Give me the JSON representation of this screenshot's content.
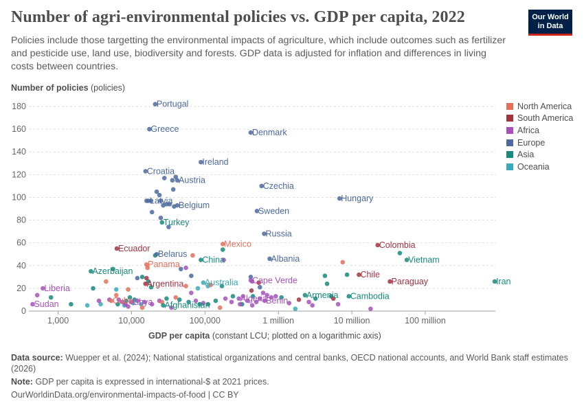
{
  "header": {
    "title": "Number of agri-environmental policies vs. GDP per capita, 2022",
    "subtitle": "Policies include those targetting the environmental impacts of agriculture, which include outcomes such as fertilizer and pesticide use, land use, biodiversity and forests. GDP data is adjusted for inflation and differences in living costs between countries.",
    "logo_line1": "Our World",
    "logo_line2": "in Data"
  },
  "footer": {
    "source_label": "Data source:",
    "source_text": "Wuepper et al. (2024); National statistical organizations and central banks, OECD national accounts, and World Bank staff estimates (2026)",
    "note_label": "Note:",
    "note_text": "GDP per capita is expressed in international-$ at 2021 prices.",
    "credit": "OurWorldinData.org/environmental-impacts-of-food | CC BY"
  },
  "colors": {
    "North America": "#e56e5a",
    "South America": "#a2333f",
    "Africa": "#a652ba",
    "Europe": "#4c6a9c",
    "Asia": "#18897c",
    "Oceania": "#3aaab8"
  },
  "chart_data": {
    "type": "scatter",
    "title": "Number of agri-environmental policies vs. GDP per capita, 2022",
    "ylabel_bold": "Number of policies",
    "ylabel_unit": "(policies)",
    "xlabel_bold": "GDP per capita",
    "xlabel_unit": "(constant LCU; plotted on a logarithmic axis)",
    "x_scale": "log",
    "xlim": [
      400,
      900000000
    ],
    "ylim": [
      0,
      180
    ],
    "x_ticks": [
      {
        "v": 1000,
        "label": "1,000"
      },
      {
        "v": 10000,
        "label": "10,000"
      },
      {
        "v": 100000,
        "label": "100,000"
      },
      {
        "v": 1000000,
        "label": "1 million"
      },
      {
        "v": 10000000,
        "label": "10 million"
      },
      {
        "v": 100000000,
        "label": "100 million"
      }
    ],
    "y_ticks": [
      0,
      20,
      40,
      60,
      80,
      100,
      120,
      140,
      160,
      180
    ],
    "grid": "horizontal",
    "legend_position": "right",
    "legend": [
      "North America",
      "South America",
      "Africa",
      "Europe",
      "Asia",
      "Oceania"
    ],
    "labeled_points": [
      {
        "name": "Portugal",
        "region": "Europe",
        "x": 21000,
        "y": 182
      },
      {
        "name": "Greece",
        "region": "Europe",
        "x": 17500,
        "y": 160
      },
      {
        "name": "Denmark",
        "region": "Europe",
        "x": 420000,
        "y": 157
      },
      {
        "name": "Ireland",
        "region": "Europe",
        "x": 88000,
        "y": 131
      },
      {
        "name": "Croatia",
        "region": "Europe",
        "x": 15500,
        "y": 123
      },
      {
        "name": "Austria",
        "region": "Europe",
        "x": 42000,
        "y": 115
      },
      {
        "name": "Czechia",
        "region": "Europe",
        "x": 590000,
        "y": 110
      },
      {
        "name": "Hungary",
        "region": "Europe",
        "x": 6800000,
        "y": 99
      },
      {
        "name": "Latvia",
        "region": "Europe",
        "x": 17000,
        "y": 97
      },
      {
        "name": "Belgium",
        "region": "Europe",
        "x": 42000,
        "y": 93
      },
      {
        "name": "Sweden",
        "region": "Europe",
        "x": 510000,
        "y": 88
      },
      {
        "name": "Turkey",
        "region": "Asia",
        "x": 26000,
        "y": 78
      },
      {
        "name": "Russia",
        "region": "Europe",
        "x": 640000,
        "y": 68
      },
      {
        "name": "Ecuador",
        "region": "South America",
        "x": 6300,
        "y": 55
      },
      {
        "name": "Mexico",
        "region": "North America",
        "x": 175000,
        "y": 59
      },
      {
        "name": "Colombia",
        "region": "South America",
        "x": 22500000,
        "y": 58
      },
      {
        "name": "Belarus",
        "region": "Europe",
        "x": 22000,
        "y": 50
      },
      {
        "name": "China",
        "region": "Asia",
        "x": 88000,
        "y": 45
      },
      {
        "name": "Albania",
        "region": "Europe",
        "x": 760000,
        "y": 46
      },
      {
        "name": "Vietnam",
        "region": "Asia",
        "x": 56000000,
        "y": 45
      },
      {
        "name": "Panama",
        "region": "North America",
        "x": 16000,
        "y": 41
      },
      {
        "name": "Azerbaijan",
        "region": "Asia",
        "x": 2800,
        "y": 35
      },
      {
        "name": "Chile",
        "region": "South America",
        "x": 12500000,
        "y": 32
      },
      {
        "name": "Paraguay",
        "region": "South America",
        "x": 33000000,
        "y": 26
      },
      {
        "name": "Iran",
        "region": "Asia",
        "x": 880000000,
        "y": 26
      },
      {
        "name": "Argentina",
        "region": "South America",
        "x": 15500,
        "y": 24
      },
      {
        "name": "Australia",
        "region": "Oceania",
        "x": 95000,
        "y": 25
      },
      {
        "name": "Cape Verde",
        "region": "Africa",
        "x": 420000,
        "y": 27
      },
      {
        "name": "Liberia",
        "region": "Africa",
        "x": 620,
        "y": 20
      },
      {
        "name": "Armenia",
        "region": "Asia",
        "x": 2300000,
        "y": 14
      },
      {
        "name": "Cambodia",
        "region": "Asia",
        "x": 9100000,
        "y": 13
      },
      {
        "name": "Algeria",
        "region": "Africa",
        "x": 290000,
        "y": 11
      },
      {
        "name": "Cuba",
        "region": "North America",
        "x": 5300,
        "y": 9
      },
      {
        "name": "Libya",
        "region": "Africa",
        "x": 9800,
        "y": 8
      },
      {
        "name": "Sudan",
        "region": "Africa",
        "x": 450,
        "y": 6
      },
      {
        "name": "Afghanistan",
        "region": "Asia",
        "x": 27000,
        "y": 5
      },
      {
        "name": "Benin",
        "region": "Africa",
        "x": 650000,
        "y": 9
      }
    ],
    "points": [
      {
        "region": "Europe",
        "x": 22000,
        "y": 105
      },
      {
        "region": "Europe",
        "x": 24000,
        "y": 102
      },
      {
        "region": "Europe",
        "x": 28000,
        "y": 117
      },
      {
        "region": "Europe",
        "x": 36000,
        "y": 115
      },
      {
        "region": "Europe",
        "x": 40000,
        "y": 118
      },
      {
        "region": "Europe",
        "x": 37000,
        "y": 107
      },
      {
        "region": "Europe",
        "x": 16000,
        "y": 97
      },
      {
        "region": "Europe",
        "x": 18500,
        "y": 97
      },
      {
        "region": "Europe",
        "x": 25000,
        "y": 97
      },
      {
        "region": "Europe",
        "x": 27000,
        "y": 93
      },
      {
        "region": "Europe",
        "x": 30000,
        "y": 94
      },
      {
        "region": "Europe",
        "x": 33000,
        "y": 94
      },
      {
        "region": "Europe",
        "x": 38000,
        "y": 92
      },
      {
        "region": "Europe",
        "x": 19000,
        "y": 87
      },
      {
        "region": "Europe",
        "x": 32000,
        "y": 74
      },
      {
        "region": "Europe",
        "x": 25000,
        "y": 82
      },
      {
        "region": "Europe",
        "x": 65000,
        "y": 31
      },
      {
        "region": "Europe",
        "x": 47000,
        "y": 37
      },
      {
        "region": "Europe",
        "x": 12000,
        "y": 29
      },
      {
        "region": "Europe",
        "x": 420000,
        "y": 30
      },
      {
        "region": "Europe",
        "x": 560000,
        "y": 21
      },
      {
        "region": "Asia",
        "x": 21000,
        "y": 49
      },
      {
        "region": "Asia",
        "x": 175000,
        "y": 54
      },
      {
        "region": "Asia",
        "x": 5600,
        "y": 37
      },
      {
        "region": "Asia",
        "x": 45000000,
        "y": 51
      },
      {
        "region": "Asia",
        "x": 3000,
        "y": 20
      },
      {
        "region": "Asia",
        "x": 1500,
        "y": 6
      },
      {
        "region": "Asia",
        "x": 800,
        "y": 12
      },
      {
        "region": "Asia",
        "x": 6500,
        "y": 6
      },
      {
        "region": "Asia",
        "x": 8500,
        "y": 9
      },
      {
        "region": "Asia",
        "x": 9500,
        "y": 12
      },
      {
        "region": "Asia",
        "x": 11000,
        "y": 10
      },
      {
        "region": "Asia",
        "x": 14000,
        "y": 30
      },
      {
        "region": "Asia",
        "x": 17000,
        "y": 26
      },
      {
        "region": "Asia",
        "x": 18500,
        "y": 21
      },
      {
        "region": "Asia",
        "x": 30000,
        "y": 11
      },
      {
        "region": "Asia",
        "x": 45000,
        "y": 10
      },
      {
        "region": "Asia",
        "x": 60000,
        "y": 8
      },
      {
        "region": "Asia",
        "x": 85000,
        "y": 6
      },
      {
        "region": "Asia",
        "x": 110000,
        "y": 6
      },
      {
        "region": "Asia",
        "x": 140000,
        "y": 9
      },
      {
        "region": "Asia",
        "x": 170000,
        "y": 22
      },
      {
        "region": "Asia",
        "x": 240000,
        "y": 13
      },
      {
        "region": "Asia",
        "x": 320000,
        "y": 6
      },
      {
        "region": "Asia",
        "x": 450000,
        "y": 13
      },
      {
        "region": "Asia",
        "x": 1100000,
        "y": 12
      },
      {
        "region": "Asia",
        "x": 4300000,
        "y": 31
      },
      {
        "region": "Asia",
        "x": 4600000,
        "y": 24
      },
      {
        "region": "Asia",
        "x": 8600000,
        "y": 32
      },
      {
        "region": "Asia",
        "x": 5200000,
        "y": 13
      },
      {
        "region": "Asia",
        "x": 3200000,
        "y": 11
      },
      {
        "region": "Oceania",
        "x": 2500,
        "y": 5
      },
      {
        "region": "Oceania",
        "x": 3800,
        "y": 6
      },
      {
        "region": "Oceania",
        "x": 6200,
        "y": 19
      },
      {
        "region": "Oceania",
        "x": 8000,
        "y": 5
      },
      {
        "region": "Oceania",
        "x": 10500,
        "y": 7
      },
      {
        "region": "Oceania",
        "x": 13500,
        "y": 6
      },
      {
        "region": "Oceania",
        "x": 80000,
        "y": 20
      },
      {
        "region": "Oceania",
        "x": 1700000,
        "y": 2
      },
      {
        "region": "Oceania",
        "x": 110000,
        "y": 22
      },
      {
        "region": "Africa",
        "x": 520,
        "y": 14
      },
      {
        "region": "Africa",
        "x": 3600,
        "y": 9
      },
      {
        "region": "Africa",
        "x": 5000,
        "y": 10
      },
      {
        "region": "Africa",
        "x": 6700,
        "y": 10
      },
      {
        "region": "Africa",
        "x": 7500,
        "y": 8
      },
      {
        "region": "Africa",
        "x": 8300,
        "y": 6
      },
      {
        "region": "Africa",
        "x": 9000,
        "y": 4
      },
      {
        "region": "Africa",
        "x": 12000,
        "y": 9
      },
      {
        "region": "Africa",
        "x": 15000,
        "y": 8
      },
      {
        "region": "Africa",
        "x": 19000,
        "y": 6
      },
      {
        "region": "Africa",
        "x": 24000,
        "y": 9
      },
      {
        "region": "Africa",
        "x": 35000,
        "y": 3
      },
      {
        "region": "Africa",
        "x": 55000,
        "y": 38
      },
      {
        "region": "Africa",
        "x": 65000,
        "y": 16
      },
      {
        "region": "Africa",
        "x": 75000,
        "y": 9
      },
      {
        "region": "Africa",
        "x": 95000,
        "y": 7
      },
      {
        "region": "Africa",
        "x": 180000,
        "y": 45
      },
      {
        "region": "Africa",
        "x": 190000,
        "y": 11
      },
      {
        "region": "Africa",
        "x": 230000,
        "y": 8
      },
      {
        "region": "Africa",
        "x": 300000,
        "y": 6
      },
      {
        "region": "Africa",
        "x": 330000,
        "y": 13
      },
      {
        "region": "Africa",
        "x": 380000,
        "y": 9
      },
      {
        "region": "Africa",
        "x": 440000,
        "y": 5
      },
      {
        "region": "Africa",
        "x": 500000,
        "y": 8
      },
      {
        "region": "Africa",
        "x": 560000,
        "y": 11
      },
      {
        "region": "Africa",
        "x": 620000,
        "y": 16
      },
      {
        "region": "Africa",
        "x": 700000,
        "y": 14
      },
      {
        "region": "Africa",
        "x": 800000,
        "y": 12
      },
      {
        "region": "Africa",
        "x": 920000,
        "y": 13
      },
      {
        "region": "Africa",
        "x": 1400000,
        "y": 7
      },
      {
        "region": "Africa",
        "x": 2600000,
        "y": 8
      },
      {
        "region": "Africa",
        "x": 2900000,
        "y": 5
      },
      {
        "region": "Africa",
        "x": 6500000,
        "y": 6
      },
      {
        "region": "Africa",
        "x": 18000000,
        "y": 2
      },
      {
        "region": "Africa",
        "x": 440000,
        "y": 26
      },
      {
        "region": "North America",
        "x": 4500,
        "y": 26
      },
      {
        "region": "North America",
        "x": 6200,
        "y": 14
      },
      {
        "region": "North America",
        "x": 9000,
        "y": 19
      },
      {
        "region": "North America",
        "x": 14000,
        "y": 3
      },
      {
        "region": "North America",
        "x": 26000,
        "y": 8
      },
      {
        "region": "North America",
        "x": 40000,
        "y": 12
      },
      {
        "region": "North America",
        "x": 55000,
        "y": 22
      },
      {
        "region": "North America",
        "x": 68000,
        "y": 49
      },
      {
        "region": "North America",
        "x": 120000,
        "y": 23
      },
      {
        "region": "North America",
        "x": 160000,
        "y": 3
      },
      {
        "region": "North America",
        "x": 7500000,
        "y": 43
      },
      {
        "region": "North America",
        "x": 16500,
        "y": 38
      },
      {
        "region": "South America",
        "x": 16000,
        "y": 29
      },
      {
        "region": "South America",
        "x": 540000,
        "y": 25
      },
      {
        "region": "South America",
        "x": 1900000,
        "y": 10
      },
      {
        "region": "South America",
        "x": 5600000,
        "y": 11
      },
      {
        "region": "South America",
        "x": 430000,
        "y": 18
      }
    ]
  }
}
